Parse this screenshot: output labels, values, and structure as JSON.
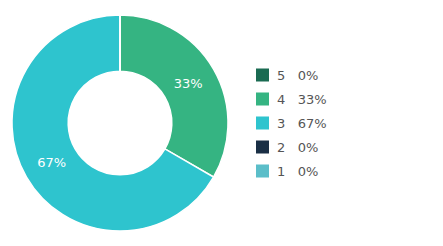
{
  "chart_data": {
    "type": "donut",
    "categories": [
      "5   0%",
      "4   33%",
      "3   67%",
      "2   0%",
      "1   0%"
    ],
    "values": [
      0.001,
      33.333,
      66.666,
      0.001,
      0.001
    ],
    "value_labels": [
      null,
      "33%",
      "67%",
      null,
      null
    ],
    "colors": [
      "#1a6b52",
      "#35b482",
      "#2ec4ce",
      "#1a2f45",
      "#5bbec9"
    ],
    "legend": "right",
    "data_labels": true
  }
}
